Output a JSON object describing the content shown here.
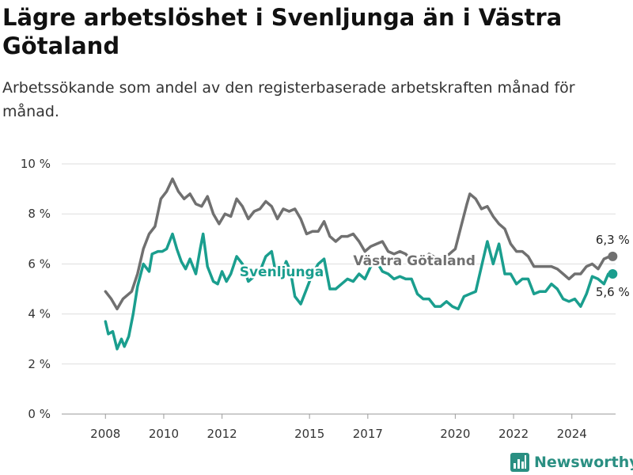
{
  "title": "Lägre arbetslöshet i Svenljunga än i Västra Götaland",
  "subtitle": "Arbetssökande som andel av den registerbaserade arbetskraften månad för månad.",
  "brand": "Newsworthy",
  "chart_data": {
    "type": "line",
    "title": "Lägre arbetslöshet i Svenljunga än i Västra Götaland",
    "subtitle": "Arbetssökande som andel av den registerbaserade arbetskraften månad för månad.",
    "ylim": [
      0,
      10
    ],
    "xlim": [
      2006.5,
      2025.5
    ],
    "y_ticks": [
      0,
      2,
      4,
      6,
      8,
      10
    ],
    "y_tick_labels": [
      "0 %",
      "2 %",
      "4 %",
      "6 %",
      "8 %",
      "10 %"
    ],
    "x_ticks": [
      2008,
      2010,
      2012,
      2015,
      2017,
      2020,
      2022,
      2024
    ],
    "x_tick_labels": [
      "2008",
      "2010",
      "2012",
      "2015",
      "2017",
      "2020",
      "2022",
      "2024"
    ],
    "grid": true,
    "series": [
      {
        "name": "Västra Götaland",
        "color": "#707070",
        "end_label": "6,3 %",
        "points": [
          [
            2008.0,
            4.9
          ],
          [
            2008.2,
            4.6
          ],
          [
            2008.4,
            4.2
          ],
          [
            2008.6,
            4.6
          ],
          [
            2008.9,
            4.9
          ],
          [
            2009.1,
            5.6
          ],
          [
            2009.3,
            6.6
          ],
          [
            2009.5,
            7.2
          ],
          [
            2009.7,
            7.5
          ],
          [
            2009.9,
            8.6
          ],
          [
            2010.1,
            8.9
          ],
          [
            2010.3,
            9.4
          ],
          [
            2010.5,
            8.9
          ],
          [
            2010.7,
            8.6
          ],
          [
            2010.9,
            8.8
          ],
          [
            2011.1,
            8.4
          ],
          [
            2011.3,
            8.3
          ],
          [
            2011.5,
            8.7
          ],
          [
            2011.7,
            8.0
          ],
          [
            2011.9,
            7.6
          ],
          [
            2012.1,
            8.0
          ],
          [
            2012.3,
            7.9
          ],
          [
            2012.5,
            8.6
          ],
          [
            2012.7,
            8.3
          ],
          [
            2012.9,
            7.8
          ],
          [
            2013.1,
            8.1
          ],
          [
            2013.3,
            8.2
          ],
          [
            2013.5,
            8.5
          ],
          [
            2013.7,
            8.3
          ],
          [
            2013.9,
            7.8
          ],
          [
            2014.1,
            8.2
          ],
          [
            2014.3,
            8.1
          ],
          [
            2014.5,
            8.2
          ],
          [
            2014.7,
            7.8
          ],
          [
            2014.9,
            7.2
          ],
          [
            2015.1,
            7.3
          ],
          [
            2015.3,
            7.3
          ],
          [
            2015.5,
            7.7
          ],
          [
            2015.7,
            7.1
          ],
          [
            2015.9,
            6.9
          ],
          [
            2016.1,
            7.1
          ],
          [
            2016.3,
            7.1
          ],
          [
            2016.5,
            7.2
          ],
          [
            2016.7,
            6.9
          ],
          [
            2016.9,
            6.5
          ],
          [
            2017.1,
            6.7
          ],
          [
            2017.3,
            6.8
          ],
          [
            2017.5,
            6.9
          ],
          [
            2017.7,
            6.5
          ],
          [
            2017.9,
            6.4
          ],
          [
            2018.1,
            6.5
          ],
          [
            2018.3,
            6.4
          ],
          [
            2018.6,
            6.0
          ],
          [
            2018.9,
            6.1
          ],
          [
            2019.1,
            6.4
          ],
          [
            2019.4,
            6.2
          ],
          [
            2019.7,
            6.3
          ],
          [
            2019.9,
            6.5
          ],
          [
            2020.0,
            6.6
          ],
          [
            2020.2,
            7.5
          ],
          [
            2020.4,
            8.4
          ],
          [
            2020.5,
            8.8
          ],
          [
            2020.7,
            8.6
          ],
          [
            2020.9,
            8.2
          ],
          [
            2021.1,
            8.3
          ],
          [
            2021.3,
            7.9
          ],
          [
            2021.5,
            7.6
          ],
          [
            2021.7,
            7.4
          ],
          [
            2021.9,
            6.8
          ],
          [
            2022.1,
            6.5
          ],
          [
            2022.3,
            6.5
          ],
          [
            2022.5,
            6.3
          ],
          [
            2022.7,
            5.9
          ],
          [
            2022.9,
            5.9
          ],
          [
            2023.1,
            5.9
          ],
          [
            2023.3,
            5.9
          ],
          [
            2023.5,
            5.8
          ],
          [
            2023.7,
            5.6
          ],
          [
            2023.9,
            5.4
          ],
          [
            2024.1,
            5.6
          ],
          [
            2024.3,
            5.6
          ],
          [
            2024.5,
            5.9
          ],
          [
            2024.7,
            6.0
          ],
          [
            2024.9,
            5.8
          ],
          [
            2025.1,
            6.2
          ],
          [
            2025.3,
            6.3
          ],
          [
            2025.4,
            6.3
          ]
        ]
      },
      {
        "name": "Svenljunga",
        "color": "#1a9e8e",
        "end_label": "5,6 %",
        "points": [
          [
            2008.0,
            3.7
          ],
          [
            2008.1,
            3.2
          ],
          [
            2008.25,
            3.3
          ],
          [
            2008.4,
            2.6
          ],
          [
            2008.55,
            3.0
          ],
          [
            2008.65,
            2.7
          ],
          [
            2008.8,
            3.1
          ],
          [
            2008.95,
            4.0
          ],
          [
            2009.1,
            5.1
          ],
          [
            2009.3,
            6.0
          ],
          [
            2009.5,
            5.7
          ],
          [
            2009.6,
            6.4
          ],
          [
            2009.8,
            6.5
          ],
          [
            2009.95,
            6.5
          ],
          [
            2010.1,
            6.6
          ],
          [
            2010.3,
            7.2
          ],
          [
            2010.45,
            6.6
          ],
          [
            2010.6,
            6.1
          ],
          [
            2010.75,
            5.8
          ],
          [
            2010.9,
            6.2
          ],
          [
            2011.1,
            5.6
          ],
          [
            2011.25,
            6.6
          ],
          [
            2011.35,
            7.2
          ],
          [
            2011.5,
            5.9
          ],
          [
            2011.7,
            5.3
          ],
          [
            2011.85,
            5.2
          ],
          [
            2012.0,
            5.7
          ],
          [
            2012.15,
            5.3
          ],
          [
            2012.3,
            5.6
          ],
          [
            2012.5,
            6.3
          ],
          [
            2012.7,
            6.0
          ],
          [
            2012.9,
            5.3
          ],
          [
            2013.1,
            5.5
          ],
          [
            2013.3,
            5.7
          ],
          [
            2013.5,
            6.3
          ],
          [
            2013.7,
            6.5
          ],
          [
            2013.85,
            5.6
          ],
          [
            2014.0,
            5.5
          ],
          [
            2014.2,
            6.1
          ],
          [
            2014.35,
            5.7
          ],
          [
            2014.5,
            4.7
          ],
          [
            2014.7,
            4.4
          ],
          [
            2014.9,
            5.0
          ],
          [
            2015.1,
            5.6
          ],
          [
            2015.3,
            6.0
          ],
          [
            2015.5,
            6.2
          ],
          [
            2015.7,
            5.0
          ],
          [
            2015.9,
            5.0
          ],
          [
            2016.1,
            5.2
          ],
          [
            2016.3,
            5.4
          ],
          [
            2016.5,
            5.3
          ],
          [
            2016.7,
            5.6
          ],
          [
            2016.9,
            5.4
          ],
          [
            2017.1,
            5.9
          ],
          [
            2017.3,
            6.1
          ],
          [
            2017.5,
            5.7
          ],
          [
            2017.7,
            5.6
          ],
          [
            2017.9,
            5.4
          ],
          [
            2018.1,
            5.5
          ],
          [
            2018.3,
            5.4
          ],
          [
            2018.5,
            5.4
          ],
          [
            2018.7,
            4.8
          ],
          [
            2018.9,
            4.6
          ],
          [
            2019.1,
            4.6
          ],
          [
            2019.3,
            4.3
          ],
          [
            2019.5,
            4.3
          ],
          [
            2019.7,
            4.5
          ],
          [
            2019.9,
            4.3
          ],
          [
            2020.1,
            4.2
          ],
          [
            2020.3,
            4.7
          ],
          [
            2020.5,
            4.8
          ],
          [
            2020.7,
            4.9
          ],
          [
            2020.9,
            5.9
          ],
          [
            2021.1,
            6.9
          ],
          [
            2021.3,
            6.0
          ],
          [
            2021.5,
            6.8
          ],
          [
            2021.7,
            5.6
          ],
          [
            2021.9,
            5.6
          ],
          [
            2022.1,
            5.2
          ],
          [
            2022.3,
            5.4
          ],
          [
            2022.5,
            5.4
          ],
          [
            2022.7,
            4.8
          ],
          [
            2022.9,
            4.9
          ],
          [
            2023.1,
            4.9
          ],
          [
            2023.3,
            5.2
          ],
          [
            2023.5,
            5.0
          ],
          [
            2023.7,
            4.6
          ],
          [
            2023.9,
            4.5
          ],
          [
            2024.1,
            4.6
          ],
          [
            2024.3,
            4.3
          ],
          [
            2024.5,
            4.8
          ],
          [
            2024.7,
            5.5
          ],
          [
            2024.9,
            5.4
          ],
          [
            2025.1,
            5.2
          ],
          [
            2025.25,
            5.6
          ],
          [
            2025.4,
            5.6
          ]
        ]
      }
    ]
  }
}
